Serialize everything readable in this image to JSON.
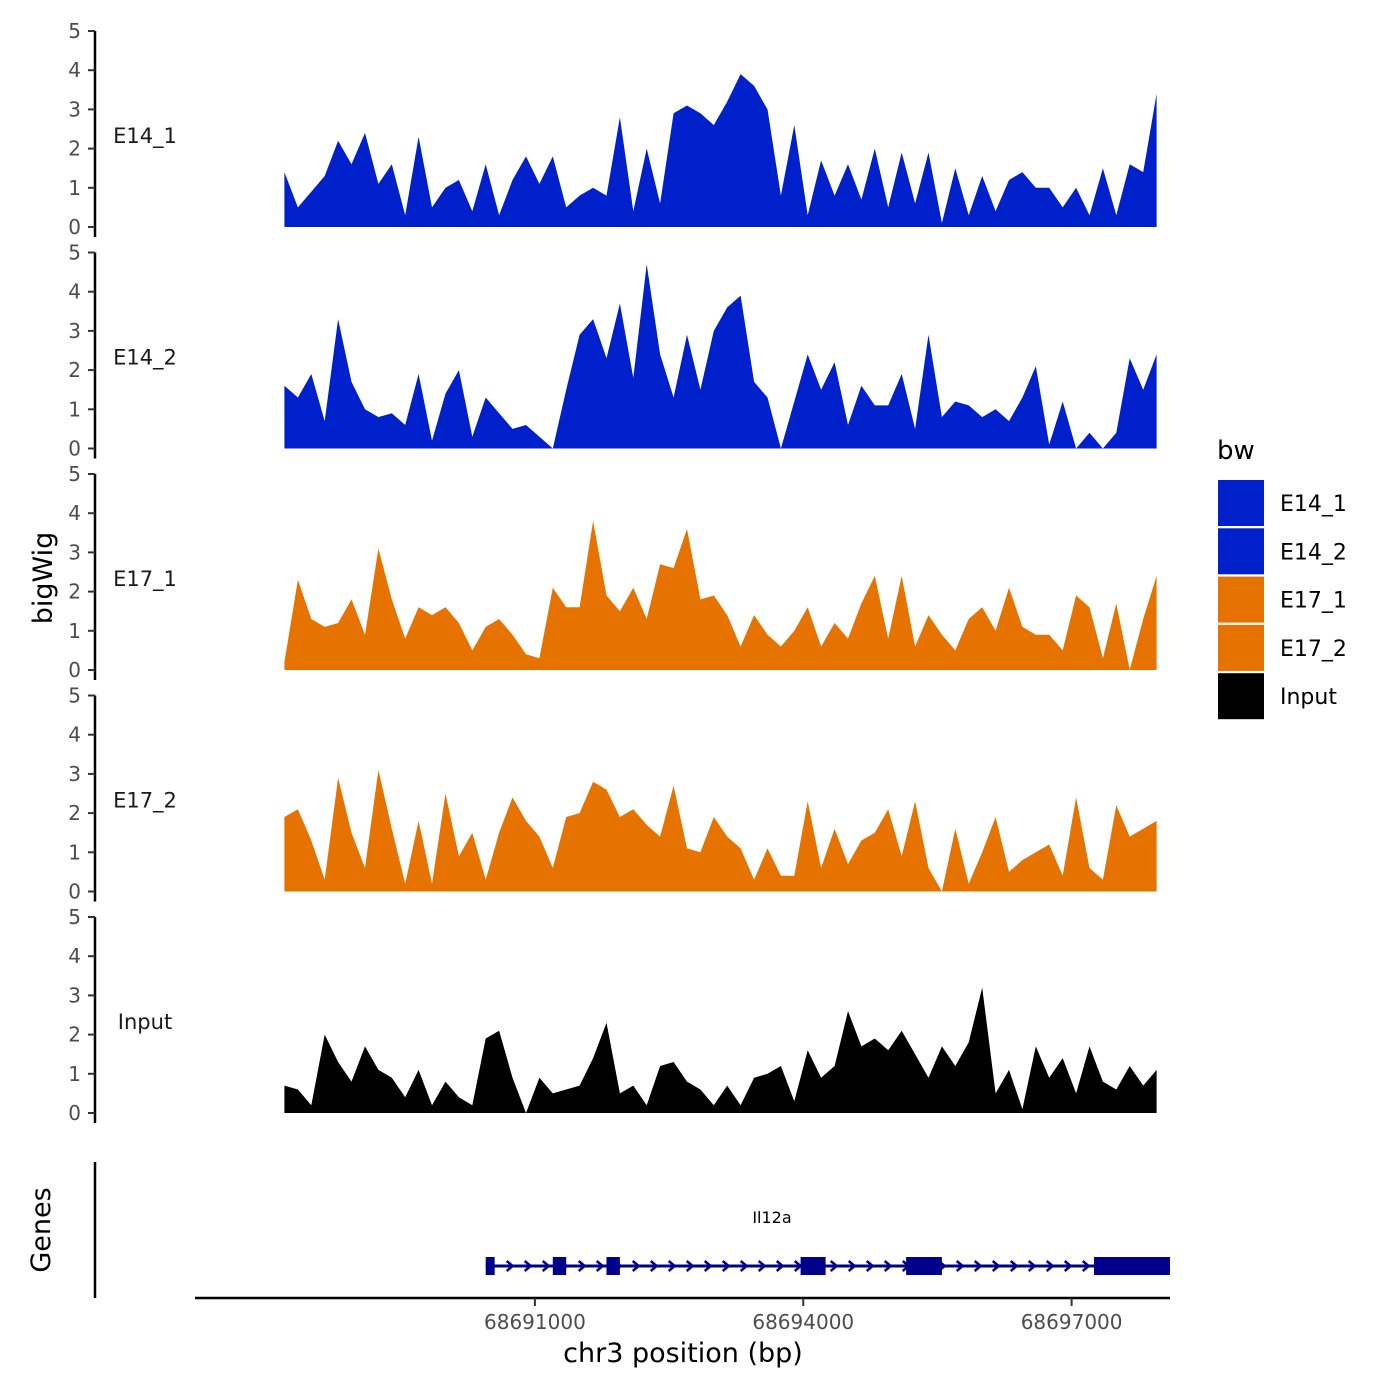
{
  "chart_data": {
    "type": "area",
    "x": [
      68688200,
      68688350,
      68688500,
      68688650,
      68688800,
      68688950,
      68689100,
      68689250,
      68689400,
      68689550,
      68689700,
      68689850,
      68690000,
      68690150,
      68690300,
      68690450,
      68690600,
      68690750,
      68690900,
      68691050,
      68691200,
      68691350,
      68691500,
      68691650,
      68691800,
      68691950,
      68692100,
      68692250,
      68692400,
      68692550,
      68692700,
      68692850,
      68693000,
      68693150,
      68693300,
      68693450,
      68693600,
      68693750,
      68693900,
      68694050,
      68694200,
      68694350,
      68694500,
      68694650,
      68694800,
      68694950,
      68695100,
      68695250,
      68695400,
      68695550,
      68695700,
      68695850,
      68696000,
      68696150,
      68696300,
      68696450,
      68696600,
      68696750,
      68696900,
      68697050,
      68697200,
      68697350,
      68697500,
      68697650,
      68697800,
      68697950
    ],
    "series": [
      {
        "name": "E14_1",
        "color": "#0020CC",
        "values": [
          1.4,
          0.5,
          0.9,
          1.3,
          2.2,
          1.6,
          2.4,
          1.1,
          1.6,
          0.3,
          2.3,
          0.5,
          1.0,
          1.2,
          0.4,
          1.6,
          0.3,
          1.2,
          1.8,
          1.1,
          1.8,
          0.5,
          0.8,
          1.0,
          0.8,
          2.8,
          0.4,
          2.0,
          0.6,
          2.9,
          3.1,
          2.9,
          2.6,
          3.2,
          3.9,
          3.6,
          3.0,
          0.8,
          2.6,
          0.3,
          1.7,
          0.8,
          1.6,
          0.7,
          2.0,
          0.5,
          1.9,
          0.6,
          1.9,
          0.1,
          1.5,
          0.3,
          1.3,
          0.4,
          1.2,
          1.4,
          1.0,
          1.0,
          0.5,
          1.0,
          0.3,
          1.5,
          0.3,
          1.6,
          1.4,
          3.4
        ]
      },
      {
        "name": "E14_2",
        "color": "#0020CC",
        "values": [
          1.6,
          1.3,
          1.9,
          0.7,
          3.3,
          1.7,
          1.0,
          0.8,
          0.9,
          0.6,
          1.9,
          0.2,
          1.4,
          2.0,
          0.3,
          1.3,
          0.9,
          0.5,
          0.6,
          0.3,
          0.0,
          1.5,
          2.9,
          3.3,
          2.3,
          3.7,
          1.8,
          4.7,
          2.4,
          1.3,
          2.9,
          1.5,
          3.0,
          3.6,
          3.9,
          1.7,
          1.3,
          0.0,
          1.2,
          2.4,
          1.5,
          2.2,
          0.6,
          1.6,
          1.1,
          1.1,
          1.9,
          0.5,
          2.9,
          0.8,
          1.2,
          1.1,
          0.8,
          1.0,
          0.7,
          1.3,
          2.1,
          0.1,
          1.2,
          0.0,
          0.4,
          0.0,
          0.4,
          2.3,
          1.5,
          2.4
        ]
      },
      {
        "name": "E17_1",
        "color": "#E67300",
        "values": [
          0.2,
          2.3,
          1.3,
          1.1,
          1.2,
          1.8,
          0.9,
          3.1,
          1.8,
          0.8,
          1.6,
          1.4,
          1.6,
          1.2,
          0.5,
          1.1,
          1.3,
          0.9,
          0.4,
          0.3,
          2.1,
          1.6,
          1.6,
          3.8,
          1.9,
          1.5,
          2.1,
          1.3,
          2.7,
          2.6,
          3.6,
          1.8,
          1.9,
          1.4,
          0.6,
          1.4,
          0.9,
          0.6,
          1.0,
          1.6,
          0.6,
          1.2,
          0.8,
          1.7,
          2.4,
          0.8,
          2.4,
          0.6,
          1.4,
          0.9,
          0.5,
          1.3,
          1.6,
          1.0,
          2.1,
          1.1,
          0.9,
          0.9,
          0.5,
          1.9,
          1.6,
          0.3,
          1.7,
          0.0,
          1.3,
          2.4
        ]
      },
      {
        "name": "E17_2",
        "color": "#E67300",
        "values": [
          1.9,
          2.1,
          1.3,
          0.3,
          2.9,
          1.5,
          0.6,
          3.1,
          1.6,
          0.2,
          1.8,
          0.2,
          2.5,
          0.9,
          1.5,
          0.3,
          1.5,
          2.4,
          1.8,
          1.4,
          0.6,
          1.9,
          2.0,
          2.8,
          2.6,
          1.9,
          2.1,
          1.7,
          1.4,
          2.7,
          1.1,
          1.0,
          1.9,
          1.4,
          1.1,
          0.3,
          1.1,
          0.4,
          0.4,
          2.3,
          0.6,
          1.6,
          0.7,
          1.3,
          1.5,
          2.1,
          0.9,
          2.3,
          0.6,
          0.0,
          1.6,
          0.2,
          1.0,
          1.9,
          0.5,
          0.8,
          1.0,
          1.2,
          0.4,
          2.4,
          0.6,
          0.3,
          2.2,
          1.4,
          1.6,
          1.8
        ]
      },
      {
        "name": "Input",
        "color": "#000000",
        "values": [
          0.7,
          0.6,
          0.2,
          2.0,
          1.3,
          0.8,
          1.7,
          1.1,
          0.9,
          0.4,
          1.1,
          0.2,
          0.8,
          0.4,
          0.2,
          1.9,
          2.1,
          0.9,
          0.0,
          0.9,
          0.5,
          0.6,
          0.7,
          1.4,
          2.3,
          0.5,
          0.7,
          0.2,
          1.2,
          1.3,
          0.8,
          0.6,
          0.2,
          0.7,
          0.2,
          0.9,
          1.0,
          1.2,
          0.3,
          1.6,
          0.9,
          1.2,
          2.6,
          1.7,
          1.9,
          1.6,
          2.1,
          1.5,
          0.9,
          1.7,
          1.2,
          1.8,
          3.2,
          0.5,
          1.1,
          0.1,
          1.7,
          0.9,
          1.4,
          0.5,
          1.7,
          0.8,
          0.6,
          1.2,
          0.7,
          1.1
        ]
      }
    ],
    "ylim": [
      0,
      5
    ],
    "yticks": [
      0,
      1,
      2,
      3,
      4,
      5
    ],
    "xlim": [
      68687200,
      68698100
    ],
    "xticks": [
      68691000,
      68694000,
      68697000
    ],
    "xtick_labels": [
      "68691000",
      "68694000",
      "68697000"
    ],
    "xlabel": "chr3 position (bp)",
    "ylabel": "bigWig",
    "genes_label": "Genes",
    "legend": {
      "title": "bw",
      "entries": [
        {
          "label": "E14_1",
          "color": "#0020CC"
        },
        {
          "label": "E14_2",
          "color": "#0020CC"
        },
        {
          "label": "E17_1",
          "color": "#E67300"
        },
        {
          "label": "E17_2",
          "color": "#E67300"
        },
        {
          "label": "Input",
          "color": "#000000"
        }
      ]
    },
    "gene": {
      "name": "Il12a",
      "strand": "+",
      "start": 68690450,
      "end": 68698100,
      "color": "#00008B",
      "exons": [
        [
          68690450,
          68690550
        ],
        [
          68691200,
          68691350
        ],
        [
          68691800,
          68691950
        ],
        [
          68693970,
          68694250
        ],
        [
          68695150,
          68695550
        ],
        [
          68697250,
          68698100
        ]
      ]
    }
  }
}
